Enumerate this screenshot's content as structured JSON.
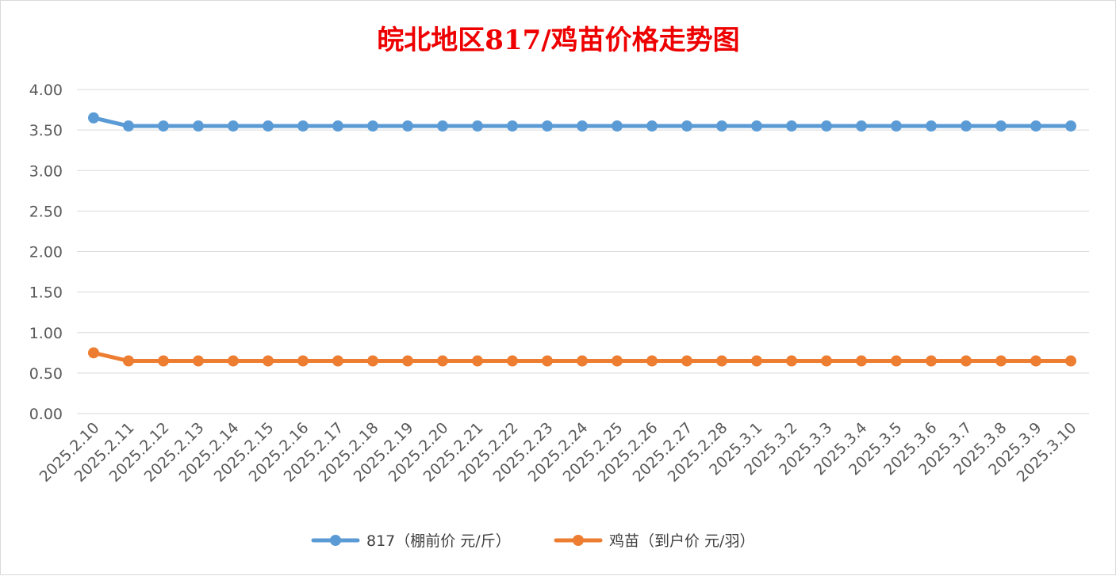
{
  "chart_data": {
    "type": "line",
    "title": "皖北地区817/鸡苗价格走势图",
    "xlabel": "",
    "ylabel": "",
    "ylim": [
      0,
      4
    ],
    "yticks": [
      "0.00",
      "0.50",
      "1.00",
      "1.50",
      "2.00",
      "2.50",
      "3.00",
      "3.50",
      "4.00"
    ],
    "grid": true,
    "legend": "bottom",
    "categories": [
      "2025.2.10",
      "2025.2.11",
      "2025.2.12",
      "2025.2.13",
      "2025.2.14",
      "2025.2.15",
      "2025.2.16",
      "2025.2.17",
      "2025.2.18",
      "2025.2.19",
      "2025.2.20",
      "2025.2.21",
      "2025.2.22",
      "2025.2.23",
      "2025.2.24",
      "2025.2.25",
      "2025.2.26",
      "2025.2.27",
      "2025.2.28",
      "2025.3.1",
      "2025.3.2",
      "2025.3.3",
      "2025.3.4",
      "2025.3.5",
      "2025.3.6",
      "2025.3.7",
      "2025.3.8",
      "2025.3.9",
      "2025.3.10"
    ],
    "series": [
      {
        "name": "817（棚前价 元/斤）",
        "color": "#5b9bd5",
        "values": [
          3.65,
          3.55,
          3.55,
          3.55,
          3.55,
          3.55,
          3.55,
          3.55,
          3.55,
          3.55,
          3.55,
          3.55,
          3.55,
          3.55,
          3.55,
          3.55,
          3.55,
          3.55,
          3.55,
          3.55,
          3.55,
          3.55,
          3.55,
          3.55,
          3.55,
          3.55,
          3.55,
          3.55,
          3.55
        ]
      },
      {
        "name": "鸡苗（到户价 元/羽）",
        "color": "#ed7d31",
        "values": [
          0.75,
          0.65,
          0.65,
          0.65,
          0.65,
          0.65,
          0.65,
          0.65,
          0.65,
          0.65,
          0.65,
          0.65,
          0.65,
          0.65,
          0.65,
          0.65,
          0.65,
          0.65,
          0.65,
          0.65,
          0.65,
          0.65,
          0.65,
          0.65,
          0.65,
          0.65,
          0.65,
          0.65,
          0.65
        ]
      }
    ]
  }
}
